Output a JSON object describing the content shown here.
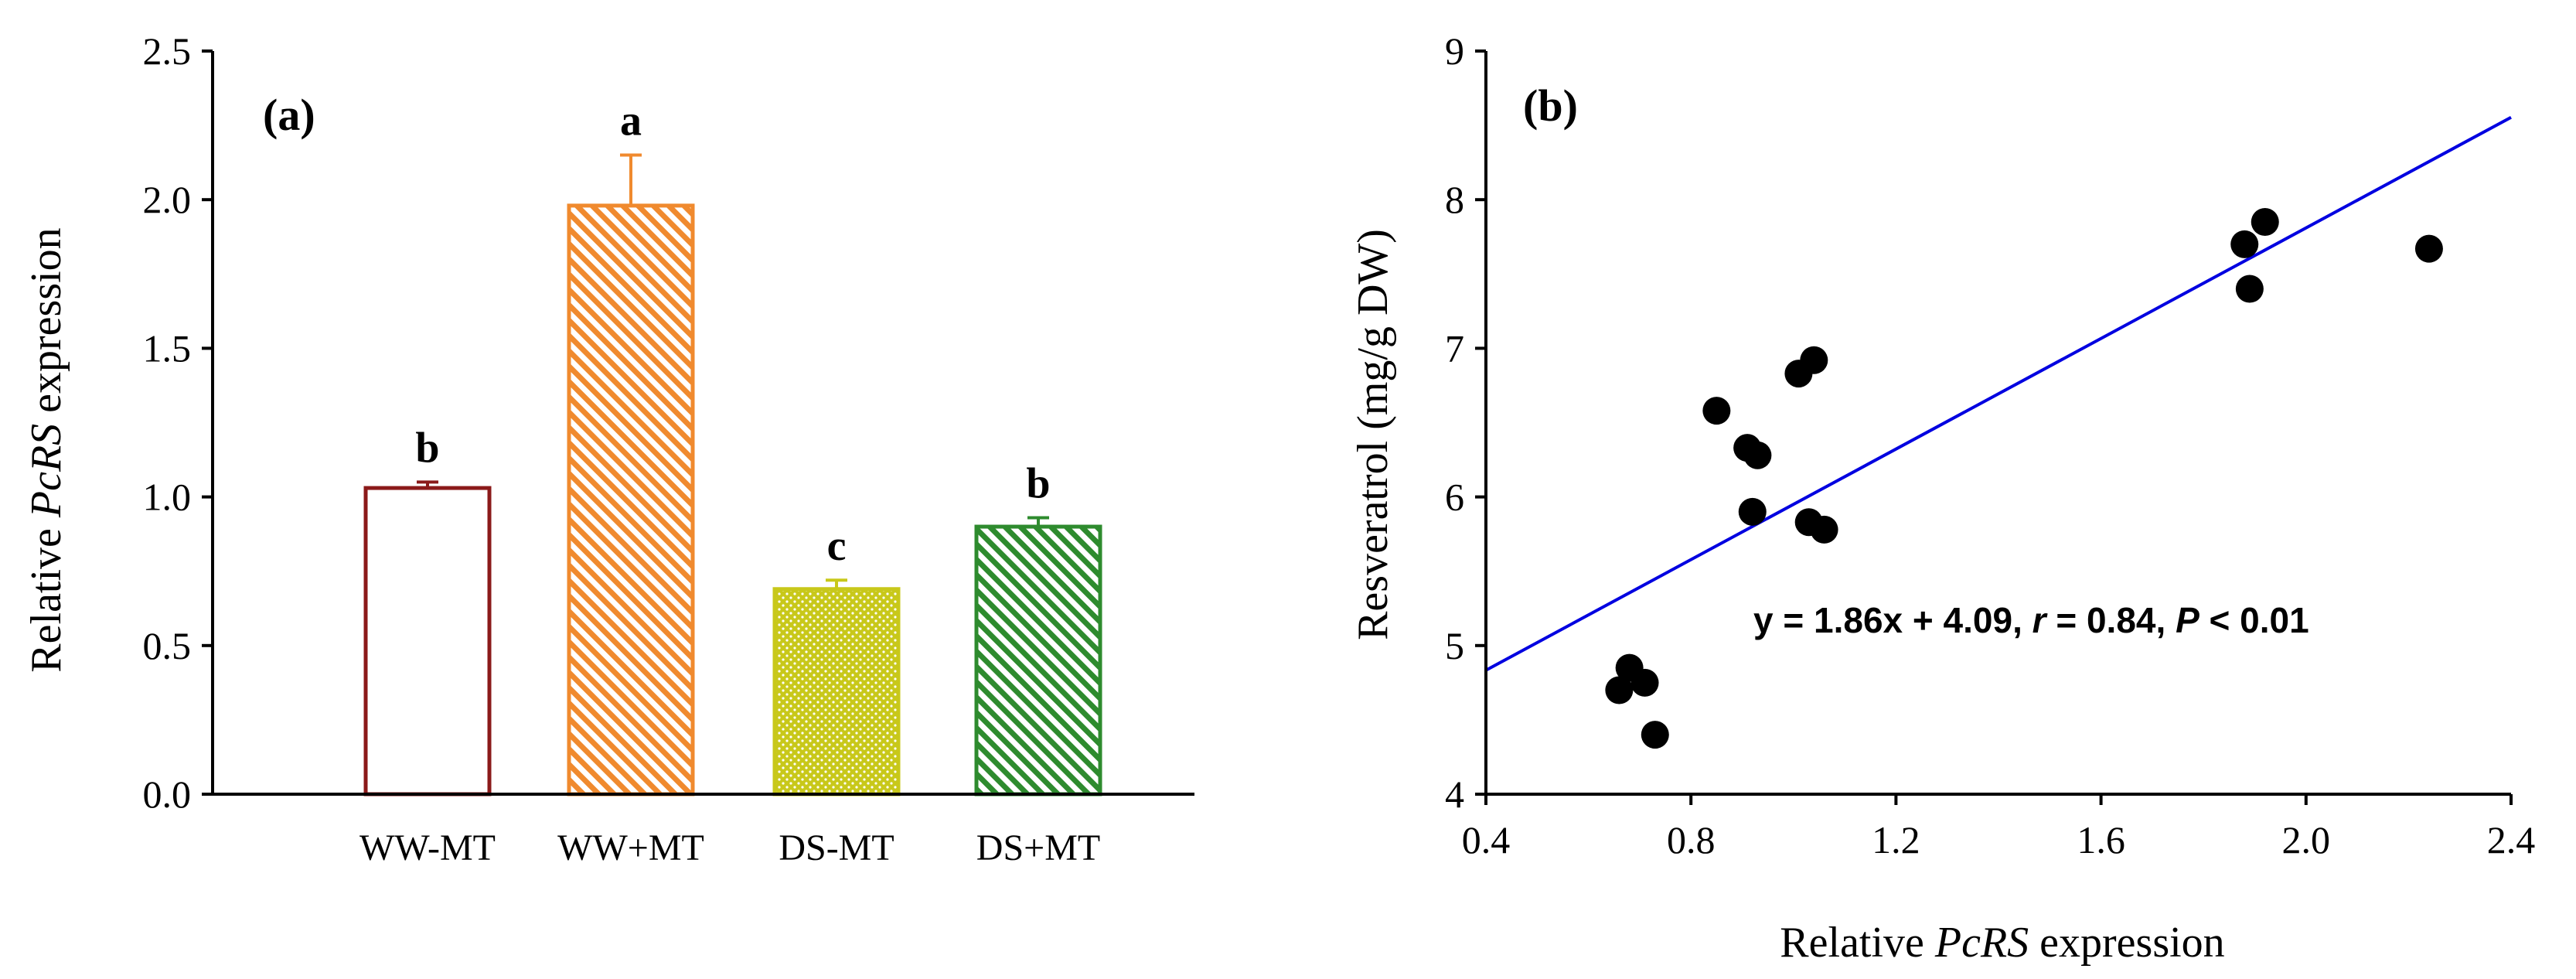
{
  "chart_data": [
    {
      "type": "bar",
      "panel_label": "(a)",
      "ylabel_prefix": "Relative ",
      "ylabel_italic": "PcRS",
      "ylabel_suffix": " expression",
      "ylim": [
        0,
        2.5
      ],
      "yticks": [
        "0.0",
        "0.5",
        "1.0",
        "1.5",
        "2.0",
        "2.5"
      ],
      "categories": [
        "WW-MT",
        "WW+MT",
        "DS-MT",
        "DS+MT"
      ],
      "values": [
        1.03,
        1.98,
        0.69,
        0.9
      ],
      "errors": [
        0.02,
        0.17,
        0.03,
        0.03
      ],
      "letters": [
        "b",
        "a",
        "c",
        "b"
      ],
      "colors": [
        "#8b1a1a",
        "#f08a2e",
        "#c8c81a",
        "#2e8b2e"
      ],
      "fills": [
        "white",
        "hatch",
        "dots",
        "hatch"
      ]
    },
    {
      "type": "scatter",
      "panel_label": "(b)",
      "xlabel_prefix": "Relative ",
      "xlabel_italic": "PcRS",
      "xlabel_suffix": " expression",
      "ylabel": "Resveratrol (mg/g DW)",
      "xlim": [
        0.4,
        2.4
      ],
      "ylim": [
        4,
        9
      ],
      "xticks": [
        "0.4",
        "0.8",
        "1.2",
        "1.6",
        "2.0",
        "2.4"
      ],
      "yticks": [
        "4",
        "5",
        "6",
        "7",
        "8",
        "9"
      ],
      "points": [
        {
          "x": 0.66,
          "y": 4.7
        },
        {
          "x": 0.68,
          "y": 4.85
        },
        {
          "x": 0.71,
          "y": 4.75
        },
        {
          "x": 0.73,
          "y": 4.4
        },
        {
          "x": 0.85,
          "y": 6.58
        },
        {
          "x": 0.91,
          "y": 6.33
        },
        {
          "x": 0.93,
          "y": 6.28
        },
        {
          "x": 0.92,
          "y": 5.9
        },
        {
          "x": 1.01,
          "y": 6.83
        },
        {
          "x": 1.04,
          "y": 6.92
        },
        {
          "x": 1.03,
          "y": 5.83
        },
        {
          "x": 1.06,
          "y": 5.78
        },
        {
          "x": 1.88,
          "y": 7.7
        },
        {
          "x": 1.92,
          "y": 7.85
        },
        {
          "x": 1.89,
          "y": 7.4
        },
        {
          "x": 2.24,
          "y": 7.67
        }
      ],
      "fit": {
        "slope": 1.86,
        "intercept": 4.09
      },
      "line_color": "#0000e0",
      "equation": {
        "part1": "y = 1.86x + 4.09, ",
        "r_symbol": "r",
        "part2": " = 0.84, ",
        "p_symbol": "P",
        "part3": " < 0.01"
      }
    }
  ]
}
